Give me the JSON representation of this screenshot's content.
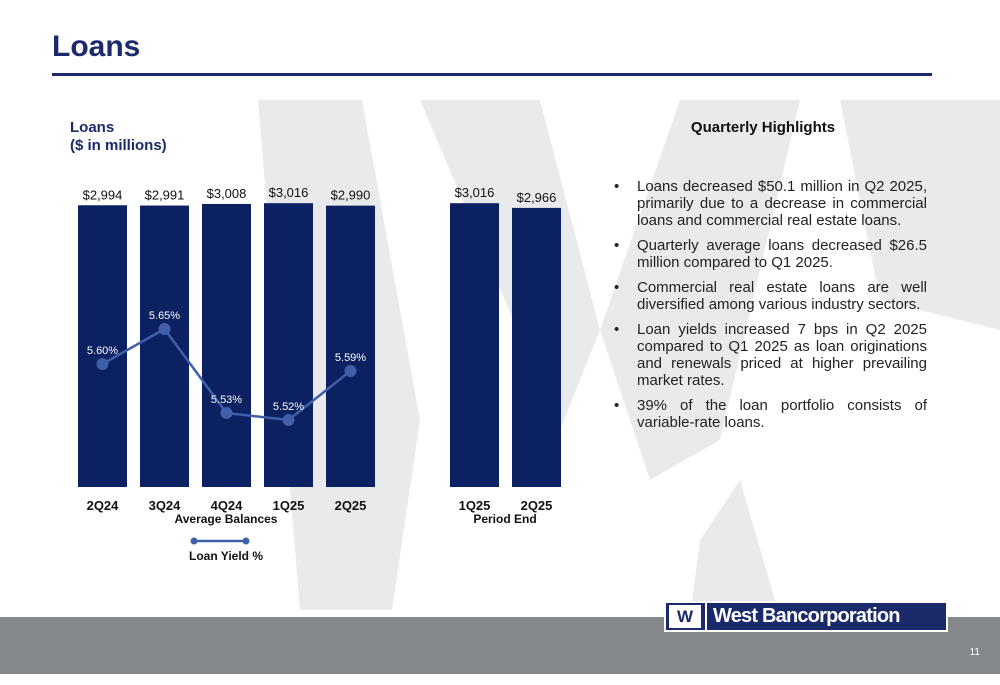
{
  "page": {
    "title": "Loans",
    "page_number": "11"
  },
  "colors": {
    "navy": "#0c2161",
    "line": "#3f5fa8",
    "footer": "#84888d",
    "watermark": "#e9eaec"
  },
  "chart_data": {
    "type": "bar",
    "title_line1": "Loans",
    "title_line2": "($ in millions)",
    "panels": [
      {
        "group_label": "Average Balances",
        "categories": [
          "2Q24",
          "3Q24",
          "4Q24",
          "1Q25",
          "2Q25"
        ],
        "values": [
          2994,
          2991,
          3008,
          3016,
          2990
        ],
        "value_labels": [
          "$2,994",
          "$2,991",
          "$3,008",
          "$3,016",
          "$2,990"
        ],
        "line_series": {
          "name": "Loan Yield %",
          "values": [
            5.6,
            5.65,
            5.53,
            5.52,
            5.59
          ],
          "labels": [
            "5.60%",
            "5.65%",
            "5.53%",
            "5.52%",
            "5.59%"
          ]
        }
      },
      {
        "group_label": "Period End",
        "categories": [
          "1Q25",
          "2Q25"
        ],
        "values": [
          3016,
          2966
        ],
        "value_labels": [
          "$3,016",
          "$2,966"
        ]
      }
    ],
    "legend": "Loan Yield %",
    "legend_position": "bottom"
  },
  "highlights": {
    "heading": "Quarterly Highlights",
    "bullet_char": "•",
    "items": [
      "Loans decreased $50.1 million in Q2 2025, primarily due to a decrease in commercial loans and commercial real estate loans.",
      "Quarterly average loans decreased $26.5 million compared to Q1 2025.",
      "Commercial real estate loans are well diversified among various industry sectors.",
      "Loan yields increased 7 bps in Q2 2025 compared to Q1 2025 as loan originations and renewals priced at higher prevailing market rates.",
      "39% of the loan portfolio consists of variable-rate loans."
    ]
  },
  "logo": {
    "mark": "W",
    "text": "West Bancorporation"
  }
}
